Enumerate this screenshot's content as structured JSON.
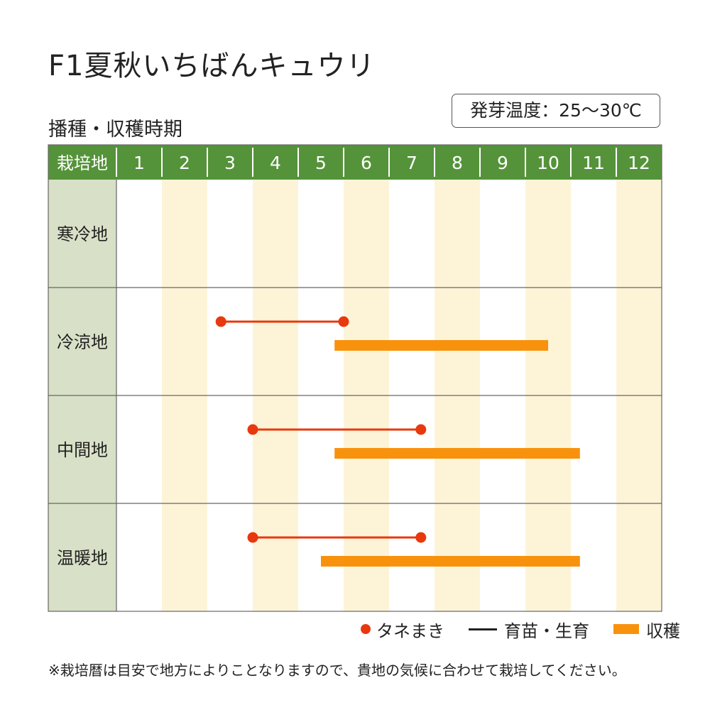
{
  "title": "F1夏秋いちばんキュウリ",
  "subtitle": "播種・収穫時期",
  "temperature_label": "発芽温度：25～30℃",
  "colors": {
    "header_green": "#55933a",
    "row_label_bg": "#d8e0c7",
    "stripe": "#fdf4d8",
    "sowing_red": "#e8380d",
    "harvest_orange": "#f8920d",
    "grid": "#666666"
  },
  "legend": {
    "sowing": "タネまき",
    "seedling": "育苗・生育",
    "harvest": "収穫"
  },
  "note": "※栽培暦は目安で地方によりことなりますので、貴地の気候に合わせて栽培してください。",
  "chart_data": {
    "type": "table",
    "header_label": "栽培地",
    "months": [
      "1",
      "2",
      "3",
      "4",
      "5",
      "6",
      "7",
      "8",
      "9",
      "10",
      "11",
      "12"
    ],
    "rows": [
      {
        "region": "寒冷地",
        "sowing": null,
        "harvest": null
      },
      {
        "region": "冷涼地",
        "sowing": [
          3.3,
          6.0
        ],
        "harvest": [
          5.8,
          10.5
        ]
      },
      {
        "region": "中間地",
        "sowing": [
          4.0,
          7.7
        ],
        "harvest": [
          5.8,
          11.2
        ]
      },
      {
        "region": "温暖地",
        "sowing": [
          4.0,
          7.7
        ],
        "harvest": [
          5.5,
          11.2
        ]
      }
    ]
  }
}
